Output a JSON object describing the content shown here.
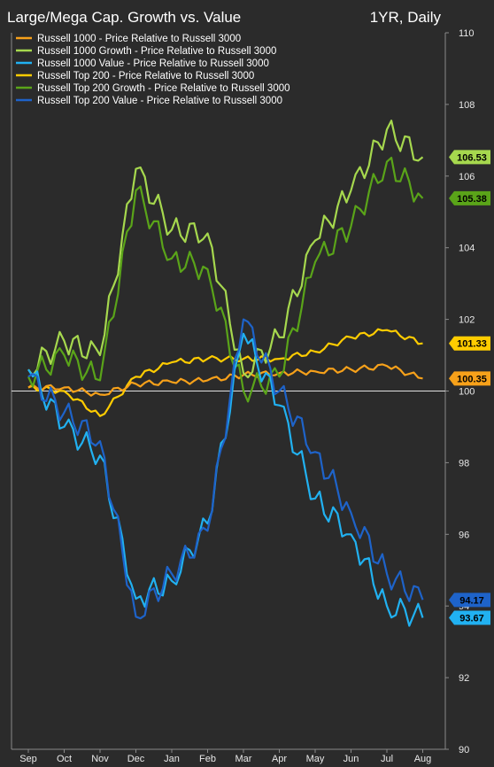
{
  "chart_data": {
    "type": "line",
    "title": "Large/Mega Cap. Growth vs. Value",
    "period_label": "1YR, Daily",
    "x_tick_labels": [
      "Sep",
      "Oct",
      "Nov",
      "Dec",
      "Jan",
      "Feb",
      "Mar",
      "Apr",
      "May",
      "Jun",
      "Jul",
      "Aug"
    ],
    "y_ticks": [
      90,
      92,
      94,
      96,
      98,
      100,
      102,
      104,
      106,
      108,
      110
    ],
    "ylim": [
      90,
      110
    ],
    "reference_line": 100,
    "grid": false,
    "legend_position": "top-left",
    "series": [
      {
        "name": "Russell 1000 - Price Relative to Russell 3000",
        "color": "#f7a11a",
        "last_value": "100.35",
        "values": [
          {
            "x": "Sep",
            "y": 100.1
          },
          {
            "x": "Oct",
            "y": 100.1
          },
          {
            "x": "Nov",
            "y": 99.9
          },
          {
            "x": "Dec",
            "y": 100.2
          },
          {
            "x": "Jan",
            "y": 100.25
          },
          {
            "x": "Feb",
            "y": 100.3
          },
          {
            "x": "Mar",
            "y": 100.45
          },
          {
            "x": "Apr",
            "y": 100.5
          },
          {
            "x": "May",
            "y": 100.55
          },
          {
            "x": "Jun",
            "y": 100.6
          },
          {
            "x": "Jul",
            "y": 100.7
          },
          {
            "x": "Aug",
            "y": 100.35
          }
        ]
      },
      {
        "name": "Russell 1000 Growth - Price Relative to Russell 3000",
        "color": "#a6d84e",
        "last_value": "106.53",
        "values": [
          {
            "x": "Sep",
            "y": 100.6
          },
          {
            "x": "Oct",
            "y": 101.4
          },
          {
            "x": "Nov",
            "y": 101.0
          },
          {
            "x": "Dec",
            "y": 106.2
          },
          {
            "x": "Jan",
            "y": 104.5
          },
          {
            "x": "Feb",
            "y": 104.4
          },
          {
            "x": "Mar",
            "y": 100.5
          },
          {
            "x": "Apr",
            "y": 101.5
          },
          {
            "x": "May",
            "y": 104.2
          },
          {
            "x": "Jun",
            "y": 105.6
          },
          {
            "x": "Jul",
            "y": 107.3
          },
          {
            "x": "Aug",
            "y": 106.53
          }
        ]
      },
      {
        "name": "Russell 1000 Value - Price Relative to Russell 3000",
        "color": "#21b1f1",
        "last_value": "93.67",
        "values": [
          {
            "x": "Sep",
            "y": 100.6
          },
          {
            "x": "Oct",
            "y": 99.0
          },
          {
            "x": "Nov",
            "y": 98.2
          },
          {
            "x": "Dec",
            "y": 94.2
          },
          {
            "x": "Jan",
            "y": 94.7
          },
          {
            "x": "Feb",
            "y": 96.3
          },
          {
            "x": "Mar",
            "y": 101.6
          },
          {
            "x": "Apr",
            "y": 99.6
          },
          {
            "x": "May",
            "y": 97.0
          },
          {
            "x": "Jun",
            "y": 96.0
          },
          {
            "x": "Jul",
            "y": 94.0
          },
          {
            "x": "Aug",
            "y": 93.67
          }
        ]
      },
      {
        "name": "Russell Top 200 - Price Relative to Russell 3000",
        "color": "#ffcc00",
        "last_value": "101.33",
        "values": [
          {
            "x": "Sep",
            "y": 100.1
          },
          {
            "x": "Oct",
            "y": 100.0
          },
          {
            "x": "Nov",
            "y": 99.3
          },
          {
            "x": "Dec",
            "y": 100.4
          },
          {
            "x": "Jan",
            "y": 100.8
          },
          {
            "x": "Feb",
            "y": 100.9
          },
          {
            "x": "Mar",
            "y": 100.9
          },
          {
            "x": "Apr",
            "y": 100.9
          },
          {
            "x": "May",
            "y": 101.1
          },
          {
            "x": "Jun",
            "y": 101.5
          },
          {
            "x": "Jul",
            "y": 101.7
          },
          {
            "x": "Aug",
            "y": 101.33
          }
        ]
      },
      {
        "name": "Russell Top 200 Growth - Price Relative to Russell 3000",
        "color": "#5aa419",
        "last_value": "105.38",
        "values": [
          {
            "x": "Sep",
            "y": 100.4
          },
          {
            "x": "Oct",
            "y": 101.0
          },
          {
            "x": "Nov",
            "y": 100.3
          },
          {
            "x": "Dec",
            "y": 105.6
          },
          {
            "x": "Jan",
            "y": 103.7
          },
          {
            "x": "Feb",
            "y": 103.4
          },
          {
            "x": "Mar",
            "y": 100.0
          },
          {
            "x": "Apr",
            "y": 100.4
          },
          {
            "x": "May",
            "y": 103.6
          },
          {
            "x": "Jun",
            "y": 104.6
          },
          {
            "x": "Jul",
            "y": 106.4
          },
          {
            "x": "Aug",
            "y": 105.38
          }
        ]
      },
      {
        "name": "Russell Top 200 Value - Price Relative to Russell 3000",
        "color": "#1e63c9",
        "last_value": "94.17",
        "values": [
          {
            "x": "Sep",
            "y": 100.4
          },
          {
            "x": "Oct",
            "y": 99.4
          },
          {
            "x": "Nov",
            "y": 98.6
          },
          {
            "x": "Dec",
            "y": 93.7
          },
          {
            "x": "Jan",
            "y": 94.9
          },
          {
            "x": "Feb",
            "y": 96.1
          },
          {
            "x": "Mar",
            "y": 102.0
          },
          {
            "x": "Apr",
            "y": 100.0
          },
          {
            "x": "May",
            "y": 98.3
          },
          {
            "x": "Jun",
            "y": 96.6
          },
          {
            "x": "Jul",
            "y": 94.9
          },
          {
            "x": "Aug",
            "y": 94.17
          }
        ]
      }
    ]
  }
}
